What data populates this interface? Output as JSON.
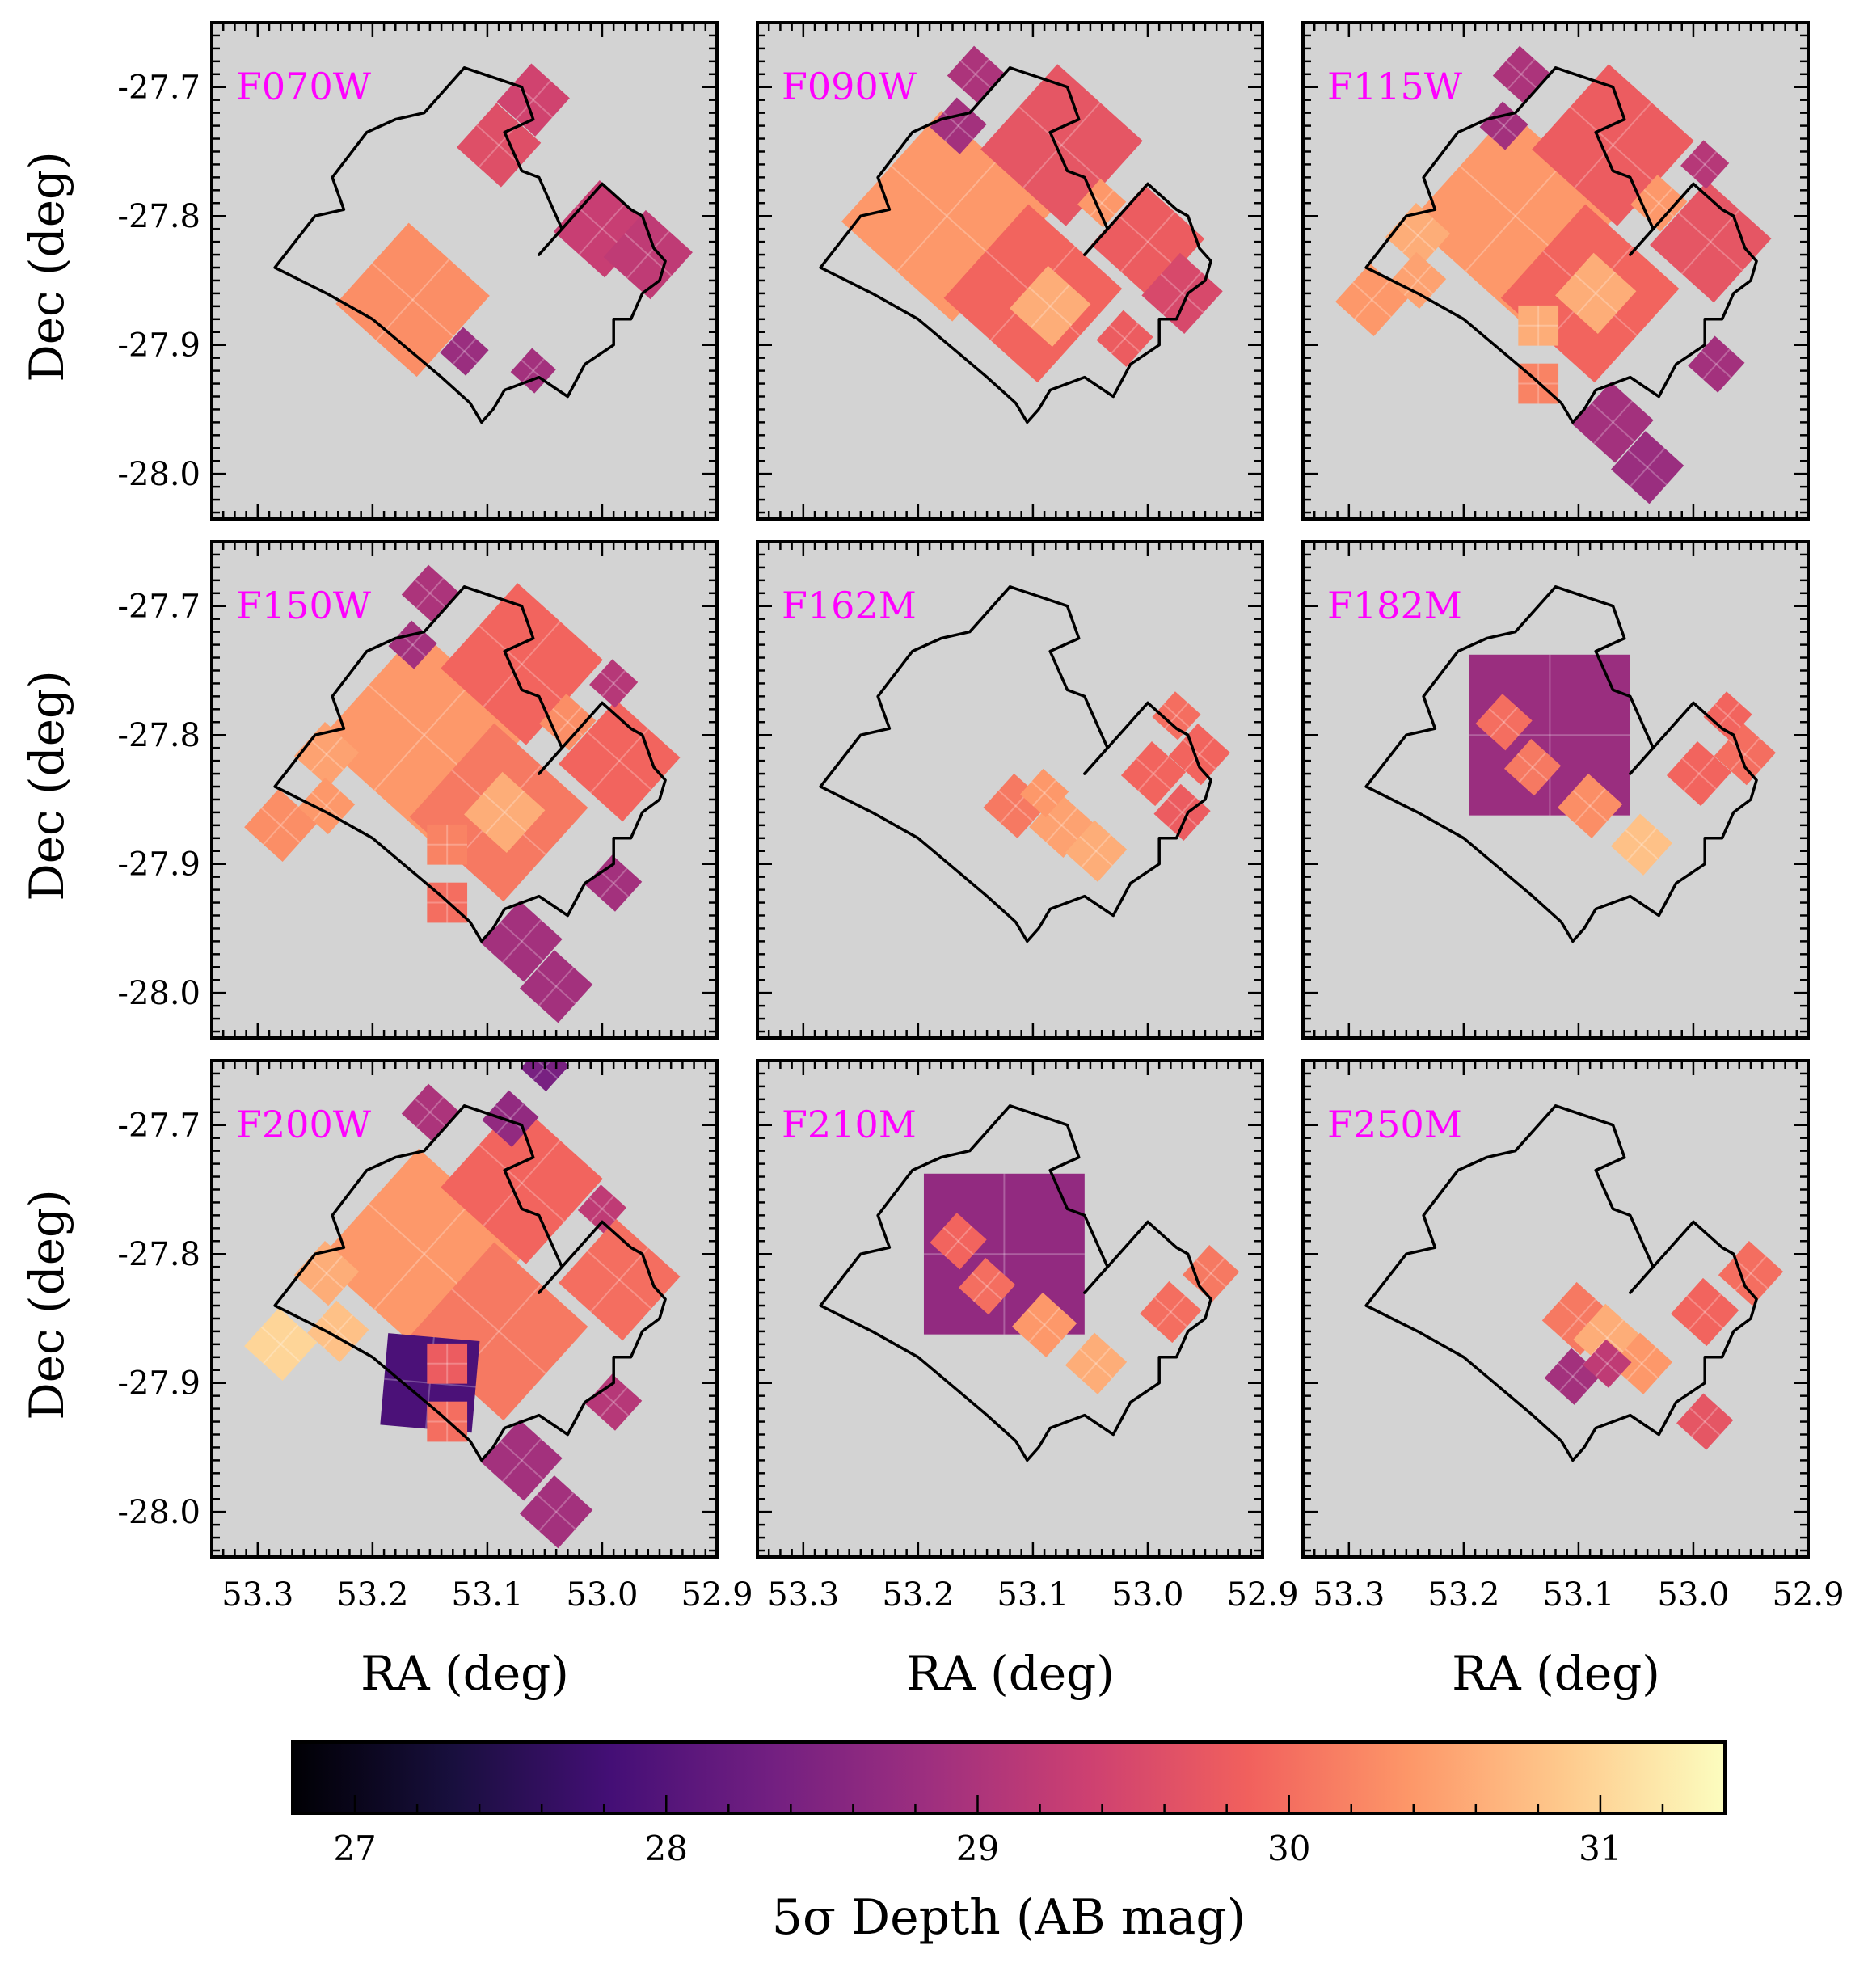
{
  "chart_data": {
    "type": "heatmap",
    "layout": "3x3 grid of sky-coverage maps with shared colorbar",
    "x_axis": {
      "label": "RA (deg)",
      "range": [
        53.34,
        52.9
      ],
      "inverted": true,
      "ticks": [
        53.3,
        53.2,
        53.1,
        53.0,
        52.9
      ],
      "tick_labels": [
        "53.3",
        "53.2",
        "53.1",
        "53.0",
        "52.9"
      ]
    },
    "y_axis": {
      "label": "Dec (deg)",
      "range": [
        -28.035,
        -27.65
      ],
      "ticks": [
        -27.7,
        -27.8,
        -27.9,
        -28.0
      ],
      "tick_labels": [
        "-27.7",
        "-27.8",
        "-27.9",
        "-28.0"
      ]
    },
    "colorbar": {
      "label": "5σ Depth (AB mag)",
      "range": [
        26.8,
        31.4
      ],
      "ticks": [
        27,
        28,
        29,
        30,
        31
      ],
      "tick_labels": [
        "27",
        "28",
        "29",
        "30",
        "31"
      ],
      "colormap": "magma",
      "stops": [
        "#000004",
        "#180f3d",
        "#440f76",
        "#721f81",
        "#9e2f7f",
        "#cd4071",
        "#f1605d",
        "#fd9668",
        "#feca8d",
        "#fcfdbf"
      ]
    },
    "background_color": "#d3d3d3",
    "label_color": "#ff00ff",
    "outline_color": "#000000",
    "outline": [
      [
        53.285,
        -27.84
      ],
      [
        53.25,
        -27.8
      ],
      [
        53.225,
        -27.795
      ],
      [
        53.235,
        -27.77
      ],
      [
        53.205,
        -27.735
      ],
      [
        53.18,
        -27.725
      ],
      [
        53.155,
        -27.72
      ],
      [
        53.14,
        -27.705
      ],
      [
        53.12,
        -27.685
      ],
      [
        53.07,
        -27.7
      ],
      [
        53.06,
        -27.725
      ],
      [
        53.085,
        -27.735
      ],
      [
        53.07,
        -27.765
      ],
      [
        53.055,
        -27.77
      ],
      [
        53.045,
        -27.79
      ],
      [
        53.035,
        -27.81
      ],
      [
        53.055,
        -27.83
      ],
      [
        53.0,
        -27.775
      ],
      [
        52.975,
        -27.795
      ],
      [
        52.965,
        -27.8
      ],
      [
        52.955,
        -27.825
      ],
      [
        52.945,
        -27.835
      ],
      [
        52.95,
        -27.85
      ],
      [
        52.965,
        -27.86
      ],
      [
        52.975,
        -27.88
      ],
      [
        52.99,
        -27.88
      ],
      [
        52.99,
        -27.9
      ],
      [
        53.015,
        -27.915
      ],
      [
        53.03,
        -27.94
      ],
      [
        53.055,
        -27.925
      ],
      [
        53.085,
        -27.935
      ],
      [
        53.095,
        -27.95
      ],
      [
        53.105,
        -27.96
      ],
      [
        53.115,
        -27.945
      ],
      [
        53.14,
        -27.925
      ],
      [
        53.16,
        -27.91
      ],
      [
        53.18,
        -27.895
      ],
      [
        53.2,
        -27.88
      ],
      [
        53.24,
        -27.86
      ]
    ],
    "panels": [
      {
        "filter": "F070W",
        "tiles": [
          {
            "ra": 53.165,
            "dec": -27.865,
            "size": 0.095,
            "depth": 30.3,
            "rot": 42
          },
          {
            "ra": 53.09,
            "dec": -27.745,
            "size": 0.052,
            "depth": 29.6,
            "rot": 42
          },
          {
            "ra": 53.06,
            "dec": -27.71,
            "size": 0.045,
            "depth": 29.4,
            "rot": 42
          },
          {
            "ra": 53.0,
            "dec": -27.81,
            "size": 0.06,
            "depth": 29.3,
            "rot": 42
          },
          {
            "ra": 52.96,
            "dec": -27.83,
            "size": 0.055,
            "depth": 29.2,
            "rot": 42
          },
          {
            "ra": 53.12,
            "dec": -27.905,
            "size": 0.03,
            "depth": 28.8,
            "rot": 42
          },
          {
            "ra": 53.06,
            "dec": -27.92,
            "size": 0.028,
            "depth": 28.9,
            "rot": 42
          }
        ]
      },
      {
        "filter": "F090W",
        "tiles": [
          {
            "ra": 53.175,
            "dec": -27.8,
            "size": 0.13,
            "depth": 30.4,
            "rot": 42
          },
          {
            "ra": 53.1,
            "dec": -27.86,
            "size": 0.11,
            "depth": 29.9,
            "rot": 42
          },
          {
            "ra": 53.075,
            "dec": -27.745,
            "size": 0.1,
            "depth": 29.7,
            "rot": 42
          },
          {
            "ra": 53.0,
            "dec": -27.82,
            "size": 0.07,
            "depth": 29.8,
            "rot": 42
          },
          {
            "ra": 52.97,
            "dec": -27.86,
            "size": 0.05,
            "depth": 29.5,
            "rot": 42
          },
          {
            "ra": 53.085,
            "dec": -27.87,
            "size": 0.05,
            "depth": 30.6,
            "rot": 42
          },
          {
            "ra": 53.15,
            "dec": -27.69,
            "size": 0.035,
            "depth": 29.0,
            "rot": 42
          },
          {
            "ra": 53.165,
            "dec": -27.73,
            "size": 0.035,
            "depth": 28.9,
            "rot": 42
          },
          {
            "ra": 53.02,
            "dec": -27.895,
            "size": 0.035,
            "depth": 29.8,
            "rot": 42
          },
          {
            "ra": 53.04,
            "dec": -27.79,
            "size": 0.03,
            "depth": 30.4,
            "rot": 42
          }
        ]
      },
      {
        "filter": "F115W",
        "tiles": [
          {
            "ra": 53.155,
            "dec": -27.8,
            "size": 0.13,
            "depth": 30.4,
            "rot": 42
          },
          {
            "ra": 53.09,
            "dec": -27.86,
            "size": 0.11,
            "depth": 29.9,
            "rot": 42
          },
          {
            "ra": 53.07,
            "dec": -27.745,
            "size": 0.1,
            "depth": 29.8,
            "rot": 42
          },
          {
            "ra": 52.985,
            "dec": -27.82,
            "size": 0.075,
            "depth": 29.7,
            "rot": 42
          },
          {
            "ra": 53.085,
            "dec": -27.86,
            "size": 0.05,
            "depth": 30.6,
            "rot": 42
          },
          {
            "ra": 53.28,
            "dec": -27.865,
            "size": 0.045,
            "depth": 30.4,
            "rot": 42
          },
          {
            "ra": 53.24,
            "dec": -27.815,
            "size": 0.04,
            "depth": 30.6,
            "rot": 42
          },
          {
            "ra": 53.24,
            "dec": -27.85,
            "size": 0.035,
            "depth": 30.5,
            "rot": 42
          },
          {
            "ra": 53.135,
            "dec": -27.885,
            "size": 0.035,
            "depth": 30.6,
            "rot": 0
          },
          {
            "ra": 53.135,
            "dec": -27.93,
            "size": 0.035,
            "depth": 30.2,
            "rot": 0
          },
          {
            "ra": 53.07,
            "dec": -27.96,
            "size": 0.05,
            "depth": 28.9,
            "rot": 42
          },
          {
            "ra": 53.04,
            "dec": -27.995,
            "size": 0.045,
            "depth": 28.8,
            "rot": 42
          },
          {
            "ra": 52.98,
            "dec": -27.915,
            "size": 0.035,
            "depth": 28.9,
            "rot": 42
          },
          {
            "ra": 53.03,
            "dec": -27.79,
            "size": 0.035,
            "depth": 30.4,
            "rot": 42
          },
          {
            "ra": 53.15,
            "dec": -27.69,
            "size": 0.035,
            "depth": 29.0,
            "rot": 42
          },
          {
            "ra": 53.165,
            "dec": -27.73,
            "size": 0.03,
            "depth": 28.9,
            "rot": 42
          },
          {
            "ra": 52.99,
            "dec": -27.76,
            "size": 0.03,
            "depth": 29.1,
            "rot": 42
          }
        ]
      },
      {
        "filter": "F150W",
        "tiles": [
          {
            "ra": 53.155,
            "dec": -27.8,
            "size": 0.13,
            "depth": 30.4,
            "rot": 42
          },
          {
            "ra": 53.09,
            "dec": -27.86,
            "size": 0.11,
            "depth": 30.1,
            "rot": 42
          },
          {
            "ra": 53.07,
            "dec": -27.745,
            "size": 0.1,
            "depth": 29.9,
            "rot": 42
          },
          {
            "ra": 52.985,
            "dec": -27.82,
            "size": 0.075,
            "depth": 29.9,
            "rot": 42
          },
          {
            "ra": 53.085,
            "dec": -27.86,
            "size": 0.05,
            "depth": 30.6,
            "rot": 42
          },
          {
            "ra": 53.28,
            "dec": -27.87,
            "size": 0.045,
            "depth": 30.3,
            "rot": 42
          },
          {
            "ra": 53.24,
            "dec": -27.815,
            "size": 0.04,
            "depth": 30.5,
            "rot": 42
          },
          {
            "ra": 53.24,
            "dec": -27.855,
            "size": 0.035,
            "depth": 30.4,
            "rot": 42
          },
          {
            "ra": 53.135,
            "dec": -27.885,
            "size": 0.035,
            "depth": 30.2,
            "rot": 0
          },
          {
            "ra": 53.135,
            "dec": -27.93,
            "size": 0.035,
            "depth": 30.0,
            "rot": 0
          },
          {
            "ra": 53.07,
            "dec": -27.96,
            "size": 0.05,
            "depth": 28.9,
            "rot": 42
          },
          {
            "ra": 53.04,
            "dec": -27.995,
            "size": 0.045,
            "depth": 28.9,
            "rot": 42
          },
          {
            "ra": 52.99,
            "dec": -27.915,
            "size": 0.035,
            "depth": 28.9,
            "rot": 42
          },
          {
            "ra": 53.03,
            "dec": -27.79,
            "size": 0.035,
            "depth": 30.3,
            "rot": 42
          },
          {
            "ra": 53.15,
            "dec": -27.69,
            "size": 0.035,
            "depth": 29.0,
            "rot": 42
          },
          {
            "ra": 53.165,
            "dec": -27.73,
            "size": 0.03,
            "depth": 28.9,
            "rot": 42
          },
          {
            "ra": 52.99,
            "dec": -27.76,
            "size": 0.03,
            "depth": 29.1,
            "rot": 42
          }
        ]
      },
      {
        "filter": "F162M",
        "tiles": [
          {
            "ra": 53.115,
            "dec": -27.855,
            "size": 0.04,
            "depth": 30.1,
            "rot": 42
          },
          {
            "ra": 53.075,
            "dec": -27.87,
            "size": 0.04,
            "depth": 30.5,
            "rot": 42
          },
          {
            "ra": 53.045,
            "dec": -27.89,
            "size": 0.038,
            "depth": 30.6,
            "rot": 42
          },
          {
            "ra": 53.09,
            "dec": -27.845,
            "size": 0.03,
            "depth": 30.4,
            "rot": 42
          },
          {
            "ra": 52.995,
            "dec": -27.83,
            "size": 0.04,
            "depth": 29.9,
            "rot": 42
          },
          {
            "ra": 52.955,
            "dec": -27.815,
            "size": 0.038,
            "depth": 29.9,
            "rot": 42
          },
          {
            "ra": 52.97,
            "dec": -27.86,
            "size": 0.035,
            "depth": 29.8,
            "rot": 42
          },
          {
            "ra": 52.975,
            "dec": -27.785,
            "size": 0.03,
            "depth": 30.0,
            "rot": 42
          }
        ]
      },
      {
        "filter": "F182M",
        "tiles": [
          {
            "ra": 53.125,
            "dec": -27.8,
            "size": 0.14,
            "depth": 28.8,
            "rot": 0
          },
          {
            "ra": 53.165,
            "dec": -27.79,
            "size": 0.035,
            "depth": 30.0,
            "rot": 42
          },
          {
            "ra": 53.14,
            "dec": -27.825,
            "size": 0.035,
            "depth": 30.1,
            "rot": 42
          },
          {
            "ra": 53.09,
            "dec": -27.855,
            "size": 0.04,
            "depth": 30.3,
            "rot": 42
          },
          {
            "ra": 53.045,
            "dec": -27.885,
            "size": 0.038,
            "depth": 30.8,
            "rot": 42
          },
          {
            "ra": 52.995,
            "dec": -27.83,
            "size": 0.04,
            "depth": 29.9,
            "rot": 42
          },
          {
            "ra": 52.955,
            "dec": -27.815,
            "size": 0.038,
            "depth": 30.0,
            "rot": 42
          },
          {
            "ra": 52.97,
            "dec": -27.785,
            "size": 0.03,
            "depth": 29.9,
            "rot": 42
          }
        ]
      },
      {
        "filter": "F200W",
        "tiles": [
          {
            "ra": 53.155,
            "dec": -27.8,
            "size": 0.13,
            "depth": 30.4,
            "rot": 42
          },
          {
            "ra": 53.09,
            "dec": -27.86,
            "size": 0.11,
            "depth": 30.1,
            "rot": 42
          },
          {
            "ra": 53.07,
            "dec": -27.745,
            "size": 0.1,
            "depth": 29.9,
            "rot": 42
          },
          {
            "ra": 52.985,
            "dec": -27.82,
            "size": 0.075,
            "depth": 30.0,
            "rot": 42
          },
          {
            "ra": 53.15,
            "dec": -27.9,
            "size": 0.08,
            "depth": 27.9,
            "rot": 5
          },
          {
            "ra": 53.28,
            "dec": -27.87,
            "size": 0.045,
            "depth": 31.0,
            "rot": 42
          },
          {
            "ra": 53.24,
            "dec": -27.815,
            "size": 0.04,
            "depth": 30.6,
            "rot": 42
          },
          {
            "ra": 53.23,
            "dec": -27.86,
            "size": 0.038,
            "depth": 30.8,
            "rot": 42
          },
          {
            "ra": 53.135,
            "dec": -27.885,
            "size": 0.035,
            "depth": 29.8,
            "rot": 0
          },
          {
            "ra": 53.135,
            "dec": -27.93,
            "size": 0.035,
            "depth": 30.0,
            "rot": 0
          },
          {
            "ra": 53.07,
            "dec": -27.96,
            "size": 0.05,
            "depth": 28.9,
            "rot": 42
          },
          {
            "ra": 53.04,
            "dec": -28.0,
            "size": 0.045,
            "depth": 28.9,
            "rot": 42
          },
          {
            "ra": 52.99,
            "dec": -27.915,
            "size": 0.035,
            "depth": 29.1,
            "rot": 42
          },
          {
            "ra": 53.15,
            "dec": -27.69,
            "size": 0.035,
            "depth": 29.0,
            "rot": 42
          },
          {
            "ra": 53.08,
            "dec": -27.695,
            "size": 0.035,
            "depth": 28.7,
            "rot": 42
          },
          {
            "ra": 53.05,
            "dec": -27.655,
            "size": 0.03,
            "depth": 28.4,
            "rot": 42
          },
          {
            "ra": 53.0,
            "dec": -27.765,
            "size": 0.03,
            "depth": 29.2,
            "rot": 42
          }
        ]
      },
      {
        "filter": "F210M",
        "tiles": [
          {
            "ra": 53.125,
            "dec": -27.8,
            "size": 0.14,
            "depth": 28.7,
            "rot": 0
          },
          {
            "ra": 53.165,
            "dec": -27.79,
            "size": 0.035,
            "depth": 29.9,
            "rot": 42
          },
          {
            "ra": 53.14,
            "dec": -27.825,
            "size": 0.035,
            "depth": 30.0,
            "rot": 42
          },
          {
            "ra": 53.09,
            "dec": -27.855,
            "size": 0.04,
            "depth": 30.4,
            "rot": 42
          },
          {
            "ra": 53.045,
            "dec": -27.885,
            "size": 0.038,
            "depth": 30.6,
            "rot": 42
          },
          {
            "ra": 52.98,
            "dec": -27.845,
            "size": 0.038,
            "depth": 30.0,
            "rot": 42
          },
          {
            "ra": 52.945,
            "dec": -27.815,
            "size": 0.035,
            "depth": 30.1,
            "rot": 42
          }
        ]
      },
      {
        "filter": "F250M",
        "tiles": [
          {
            "ra": 53.1,
            "dec": -27.85,
            "size": 0.045,
            "depth": 30.1,
            "rot": 42
          },
          {
            "ra": 53.075,
            "dec": -27.865,
            "size": 0.042,
            "depth": 30.6,
            "rot": 42
          },
          {
            "ra": 53.045,
            "dec": -27.885,
            "size": 0.038,
            "depth": 30.4,
            "rot": 42
          },
          {
            "ra": 53.105,
            "dec": -27.895,
            "size": 0.035,
            "depth": 28.9,
            "rot": 42
          },
          {
            "ra": 53.075,
            "dec": -27.885,
            "size": 0.03,
            "depth": 29.2,
            "rot": 42
          },
          {
            "ra": 52.99,
            "dec": -27.845,
            "size": 0.042,
            "depth": 29.9,
            "rot": 42
          },
          {
            "ra": 52.95,
            "dec": -27.815,
            "size": 0.04,
            "depth": 30.0,
            "rot": 42
          },
          {
            "ra": 52.99,
            "dec": -27.93,
            "size": 0.035,
            "depth": 29.7,
            "rot": 42
          }
        ]
      }
    ]
  }
}
